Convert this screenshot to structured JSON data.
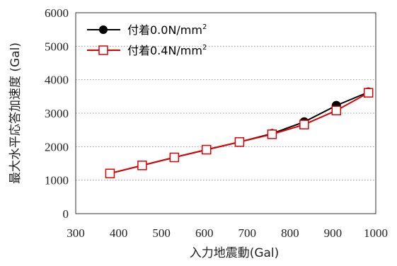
{
  "chart_data": {
    "type": "line",
    "title": "",
    "xlabel": "入力地震動(Gal)",
    "ylabel": "最大水平応答加速度 (Gal)",
    "xlim": [
      300,
      1000
    ],
    "ylim": [
      0,
      6000
    ],
    "xticks": [
      300,
      400,
      500,
      600,
      700,
      800,
      900,
      1000
    ],
    "yticks": [
      0,
      1000,
      2000,
      3000,
      4000,
      5000,
      6000
    ],
    "grid": "horizontal dotted",
    "legend_position": "top-left",
    "series": [
      {
        "name": "付着0.0N/mm",
        "name_sup": "2",
        "color": "#000000",
        "marker": "filled-circle",
        "x": [
          380,
          455,
          530,
          605,
          682,
          758,
          833,
          908,
          983
        ],
        "y": [
          1200,
          1440,
          1680,
          1910,
          2140,
          2390,
          2740,
          3230,
          3630
        ]
      },
      {
        "name": "付着0.4N/mm",
        "name_sup": "2",
        "color": "#e00000",
        "marker": "open-square",
        "x": [
          380,
          455,
          530,
          605,
          682,
          758,
          833,
          908,
          983
        ],
        "y": [
          1200,
          1440,
          1680,
          1910,
          2140,
          2370,
          2660,
          3080,
          3610
        ]
      }
    ]
  }
}
